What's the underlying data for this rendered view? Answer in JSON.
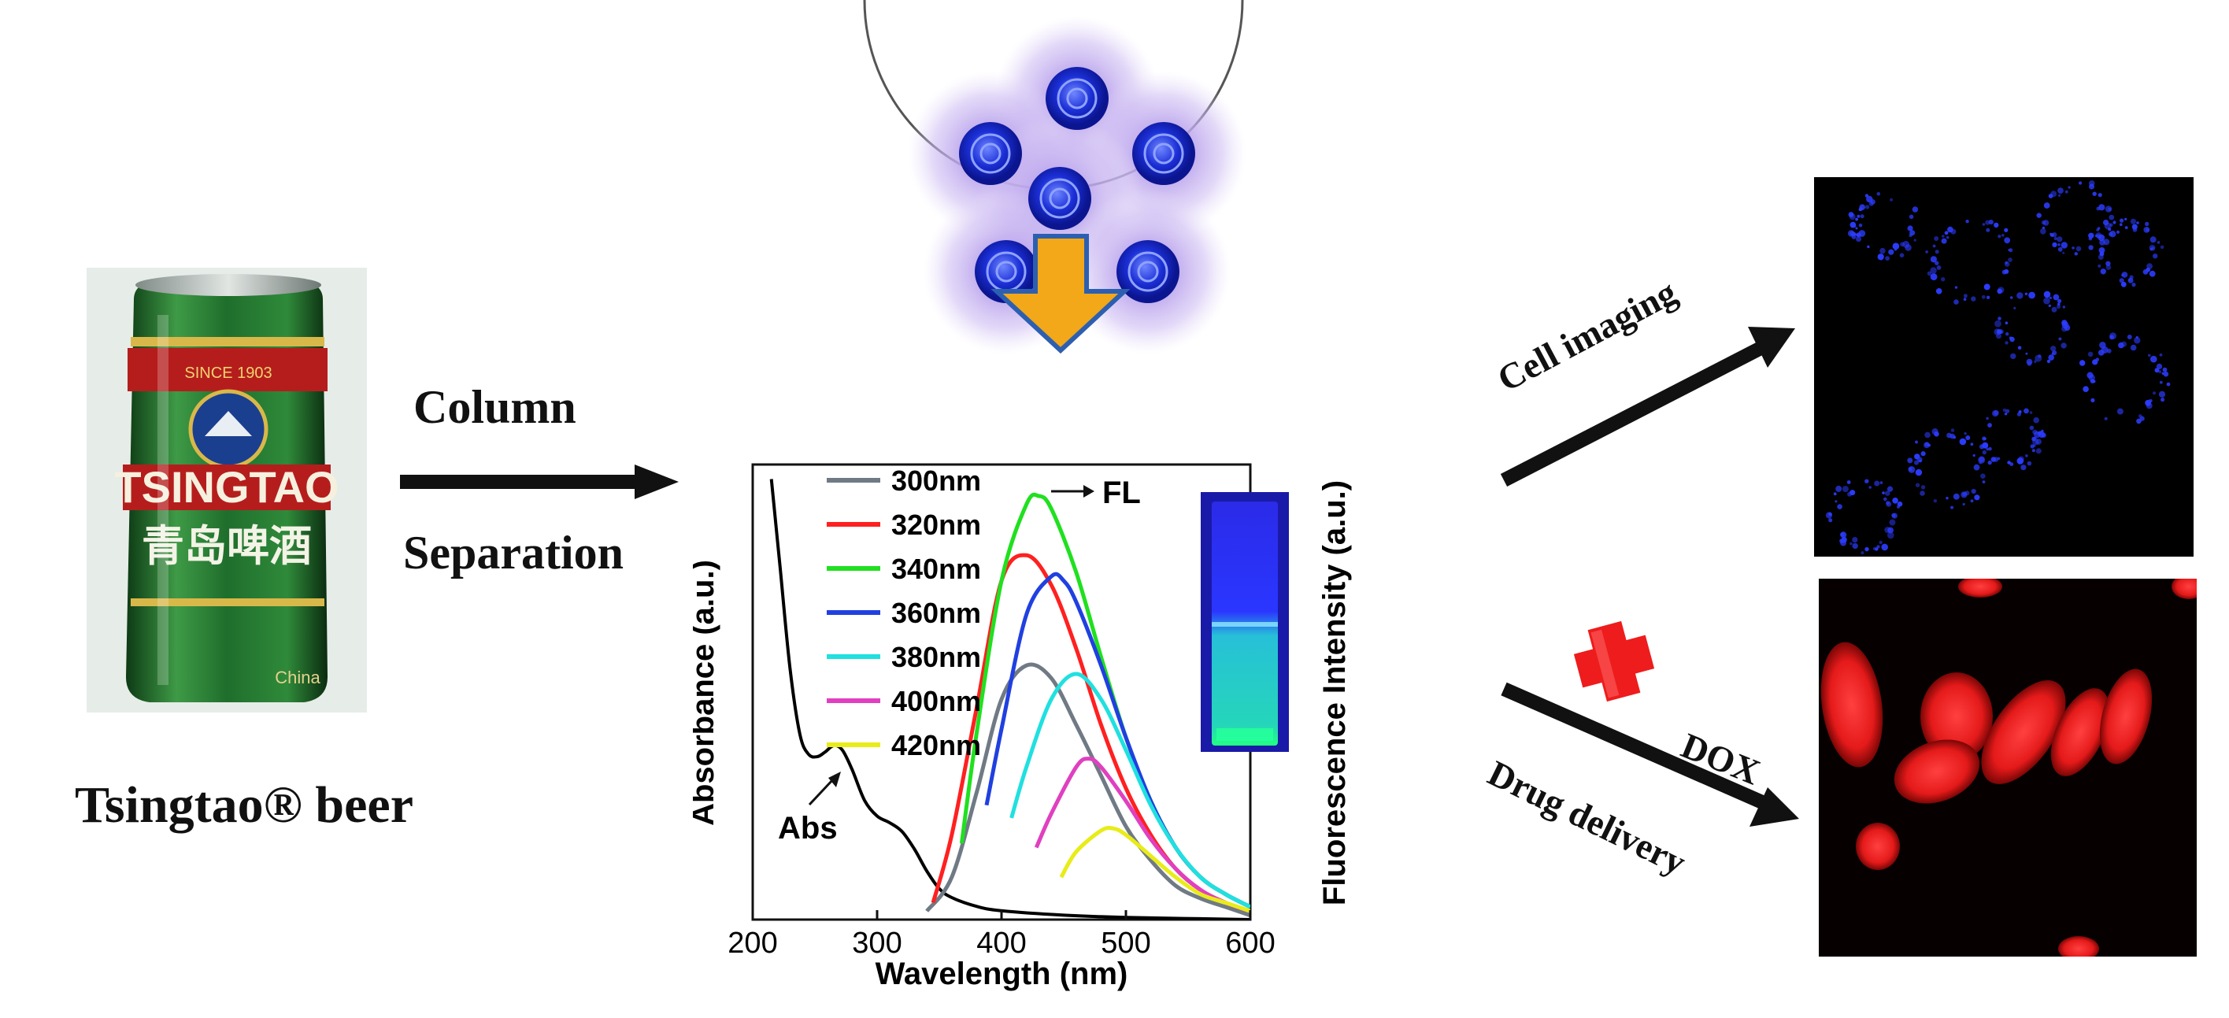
{
  "product": {
    "caption": "Tsingtao® beer",
    "can": {
      "brand_text": "TSINGTAO",
      "chinese_text": "青岛啤酒",
      "since_text": "SINCE 1903",
      "china_text": "China",
      "colors": {
        "green": "#1f6e2c",
        "red": "#b51d1d",
        "gold": "#d9b84a"
      }
    }
  },
  "step1": {
    "line1": "Column",
    "line2": "Separation"
  },
  "carbon_dots": {
    "count": 6,
    "core_color": "#1b2fd6",
    "halo_color": "#b9a2ec"
  },
  "down_arrow": {
    "color": "#f2a818",
    "border": "#2d5fb0"
  },
  "outputs": {
    "cell_imaging": {
      "label": "Cell imaging",
      "color": "#2c3cff"
    },
    "drug_delivery": {
      "label": "Drug delivery",
      "badge": "DOX",
      "color": "#ee1c1c"
    }
  },
  "chart_data": {
    "type": "line",
    "xlabel": "Wavelength (nm)",
    "ylabel_left": "Absorbance (a.u.)",
    "ylabel_right": "Fluorescence Intensity (a.u.)",
    "xlim": [
      200,
      600
    ],
    "ylim": [
      0,
      1
    ],
    "xticks": [
      200,
      300,
      400,
      500,
      600
    ],
    "annotations": {
      "abs": "Abs",
      "fl": "FL"
    },
    "absorbance": {
      "name": "Abs",
      "color": "#000000",
      "x": [
        215,
        222,
        230,
        238,
        245,
        252,
        258,
        265,
        272,
        280,
        290,
        300,
        310,
        320,
        330,
        340,
        350,
        360,
        380,
        400,
        450,
        500,
        600
      ],
      "y": [
        1.0,
        0.8,
        0.57,
        0.42,
        0.375,
        0.37,
        0.38,
        0.395,
        0.385,
        0.34,
        0.27,
        0.235,
        0.22,
        0.2,
        0.16,
        0.11,
        0.07,
        0.05,
        0.03,
        0.02,
        0.01,
        0.005,
        0.0
      ]
    },
    "series": [
      {
        "name": "300nm",
        "color": "#707a85",
        "x": [
          340,
          360,
          380,
          400,
          420,
          440,
          460,
          480,
          500,
          520,
          540,
          560,
          580,
          600
        ],
        "y": [
          0.02,
          0.1,
          0.3,
          0.52,
          0.6,
          0.57,
          0.46,
          0.34,
          0.22,
          0.14,
          0.08,
          0.05,
          0.03,
          0.01
        ]
      },
      {
        "name": "320nm",
        "color": "#ff2020",
        "x": [
          345,
          360,
          380,
          400,
          420,
          440,
          460,
          480,
          500,
          520,
          540,
          560,
          580,
          600
        ],
        "y": [
          0.04,
          0.2,
          0.5,
          0.8,
          0.86,
          0.79,
          0.64,
          0.46,
          0.31,
          0.2,
          0.12,
          0.07,
          0.04,
          0.02
        ]
      },
      {
        "name": "340nm",
        "color": "#20e020",
        "x": [
          368,
          380,
          400,
          420,
          430,
          440,
          460,
          480,
          500,
          520,
          540,
          560,
          580,
          600
        ],
        "y": [
          0.18,
          0.44,
          0.8,
          0.98,
          1.0,
          0.97,
          0.82,
          0.62,
          0.43,
          0.28,
          0.17,
          0.1,
          0.06,
          0.03
        ]
      },
      {
        "name": "360nm",
        "color": "#2040e0",
        "x": [
          388,
          400,
          420,
          440,
          450,
          460,
          480,
          500,
          520,
          540,
          560,
          580,
          600
        ],
        "y": [
          0.27,
          0.45,
          0.72,
          0.81,
          0.8,
          0.75,
          0.6,
          0.43,
          0.28,
          0.17,
          0.1,
          0.06,
          0.03
        ]
      },
      {
        "name": "380nm",
        "color": "#20e0e0",
        "x": [
          408,
          420,
          440,
          460,
          480,
          500,
          520,
          540,
          560,
          580,
          600
        ],
        "y": [
          0.24,
          0.36,
          0.52,
          0.58,
          0.52,
          0.4,
          0.27,
          0.17,
          0.1,
          0.06,
          0.03
        ]
      },
      {
        "name": "400nm",
        "color": "#e040c0",
        "x": [
          428,
          440,
          460,
          470,
          480,
          500,
          520,
          540,
          560,
          580,
          600
        ],
        "y": [
          0.17,
          0.25,
          0.36,
          0.38,
          0.36,
          0.28,
          0.19,
          0.12,
          0.07,
          0.04,
          0.02
        ]
      },
      {
        "name": "420nm",
        "color": "#e8ec18",
        "x": [
          448,
          460,
          480,
          490,
          500,
          520,
          540,
          560,
          580,
          600
        ],
        "y": [
          0.1,
          0.16,
          0.21,
          0.215,
          0.2,
          0.15,
          0.1,
          0.06,
          0.04,
          0.02
        ]
      }
    ]
  }
}
